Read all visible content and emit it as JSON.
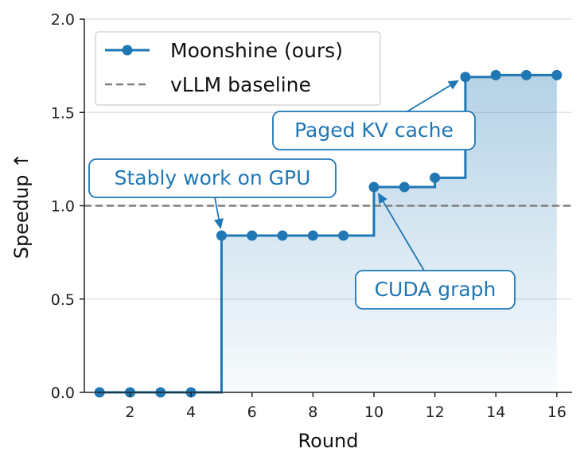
{
  "chart_data": {
    "type": "line",
    "title": "",
    "xlabel": "Round",
    "ylabel": "Speedup ↑",
    "xlim": [
      0.5,
      16.5
    ],
    "ylim": [
      0,
      2.0
    ],
    "xticks": [
      2,
      4,
      6,
      8,
      10,
      12,
      14,
      16
    ],
    "yticks": [
      "0.0",
      "0.5",
      "1.0",
      "1.5",
      "2.0"
    ],
    "grid": "horizontal",
    "series": [
      {
        "name": "Moonshine (ours)",
        "style": "step-post-with-markers-and-gradient-fill",
        "color": "#1f77b4",
        "x": [
          1,
          2,
          3,
          4,
          5,
          6,
          7,
          8,
          9,
          10,
          11,
          12,
          13,
          14,
          15,
          16
        ],
        "y": [
          0,
          0,
          0,
          0,
          0.84,
          0.84,
          0.84,
          0.84,
          0.84,
          1.1,
          1.1,
          1.15,
          1.69,
          1.7,
          1.7,
          1.7
        ]
      },
      {
        "name": "vLLM baseline",
        "style": "dashed-horizontal",
        "color": "#7f7f7f",
        "y": 1.0
      }
    ],
    "legend_position": "top-left",
    "annotations": [
      {
        "text": "Stably work on GPU",
        "x": 5,
        "y": 0.84
      },
      {
        "text": "Paged KV cache",
        "x": 13,
        "y": 1.69
      },
      {
        "text": "CUDA graph",
        "x": 10,
        "y": 1.1
      }
    ]
  }
}
